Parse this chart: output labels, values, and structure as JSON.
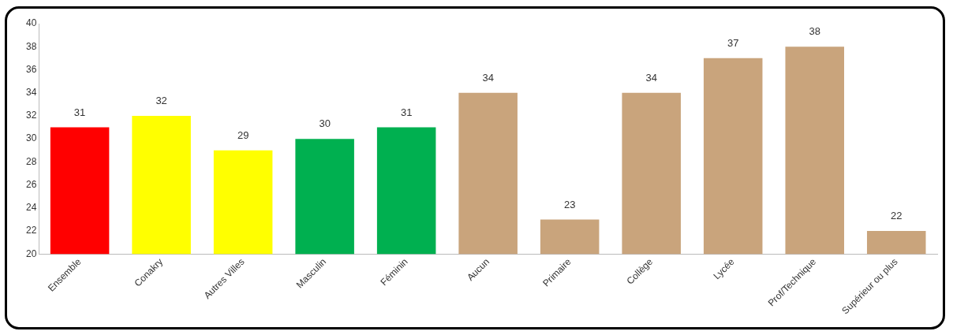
{
  "chart_data": {
    "type": "bar",
    "categories": [
      "Ensemble",
      "Conakry",
      "Autres Villes",
      "Masculin",
      "Féminin",
      "Aucun",
      "Primaire",
      "Collège",
      "Lycée",
      "Prof/Technique",
      "Supérieur ou plus"
    ],
    "values": [
      31,
      32,
      29,
      30,
      31,
      34,
      23,
      34,
      37,
      38,
      22
    ],
    "colors": [
      "#ff0000",
      "#ffff00",
      "#ffff00",
      "#00b050",
      "#00b050",
      "#c9a47c",
      "#c9a47c",
      "#c9a47c",
      "#c9a47c",
      "#c9a47c",
      "#c9a47c"
    ],
    "ylim": [
      20,
      40
    ],
    "yticks": [
      20,
      22,
      24,
      26,
      28,
      30,
      32,
      34,
      36,
      38,
      40
    ],
    "grid": false,
    "legend": false,
    "data_labels": true
  }
}
